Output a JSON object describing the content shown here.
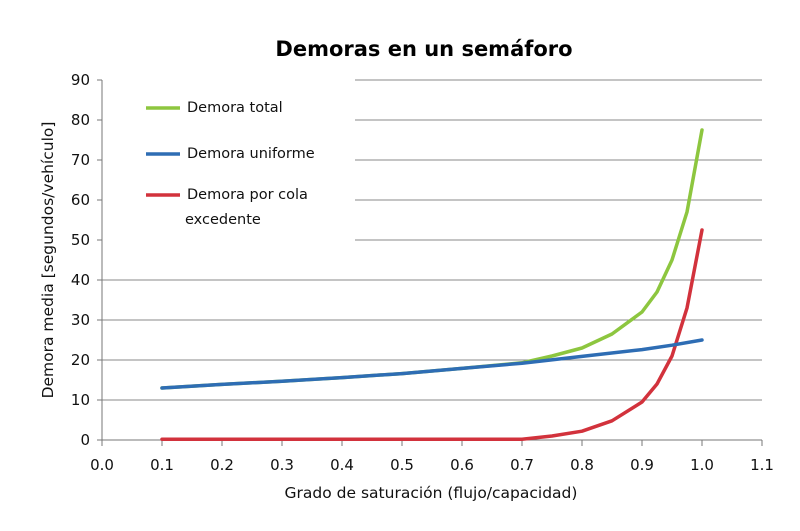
{
  "chart_data": {
    "type": "line",
    "title": "Demoras en un semáforo",
    "xlabel": "Grado de saturación (flujo/capacidad)",
    "ylabel": "Demora media [segundos/vehículo]",
    "xlim": [
      0.0,
      1.1
    ],
    "ylim": [
      0,
      90
    ],
    "x_ticks": [
      "0.0",
      "0.1",
      "0.2",
      "0.3",
      "0.4",
      "0.5",
      "0.6",
      "0.7",
      "0.8",
      "0.9",
      "1.0",
      "1.1"
    ],
    "y_ticks": [
      "0",
      "10",
      "20",
      "30",
      "40",
      "50",
      "60",
      "70",
      "80",
      "90"
    ],
    "grid": "horizontal",
    "legend_position": "top-left",
    "series": [
      {
        "name": "Demora total",
        "color": "#8dc63f",
        "points": [
          [
            0.1,
            13
          ],
          [
            0.2,
            13.9
          ],
          [
            0.3,
            14.7
          ],
          [
            0.4,
            15.6
          ],
          [
            0.5,
            16.6
          ],
          [
            0.6,
            17.9
          ],
          [
            0.7,
            19.3
          ],
          [
            0.75,
            21
          ],
          [
            0.8,
            23
          ],
          [
            0.85,
            26.5
          ],
          [
            0.9,
            32
          ],
          [
            0.925,
            37
          ],
          [
            0.95,
            45
          ],
          [
            0.975,
            57
          ],
          [
            1.0,
            77.5
          ]
        ]
      },
      {
        "name": "Demora uniforme",
        "color": "#2e6db4",
        "points": [
          [
            0.1,
            13
          ],
          [
            0.2,
            13.9
          ],
          [
            0.3,
            14.7
          ],
          [
            0.4,
            15.6
          ],
          [
            0.5,
            16.6
          ],
          [
            0.6,
            17.9
          ],
          [
            0.7,
            19.2
          ],
          [
            0.8,
            20.9
          ],
          [
            0.9,
            22.6
          ],
          [
            0.95,
            23.7
          ],
          [
            1.0,
            25
          ]
        ]
      },
      {
        "name": "Demora por cola excedente",
        "label_lines": [
          "Demora por cola",
          "excedente"
        ],
        "color": "#d2323c",
        "points": [
          [
            0.1,
            0.2
          ],
          [
            0.2,
            0.2
          ],
          [
            0.3,
            0.2
          ],
          [
            0.4,
            0.2
          ],
          [
            0.5,
            0.2
          ],
          [
            0.6,
            0.2
          ],
          [
            0.7,
            0.2
          ],
          [
            0.75,
            1
          ],
          [
            0.8,
            2.2
          ],
          [
            0.85,
            4.8
          ],
          [
            0.9,
            9.5
          ],
          [
            0.925,
            14
          ],
          [
            0.95,
            21
          ],
          [
            0.975,
            33
          ],
          [
            1.0,
            52.5
          ]
        ]
      }
    ]
  }
}
